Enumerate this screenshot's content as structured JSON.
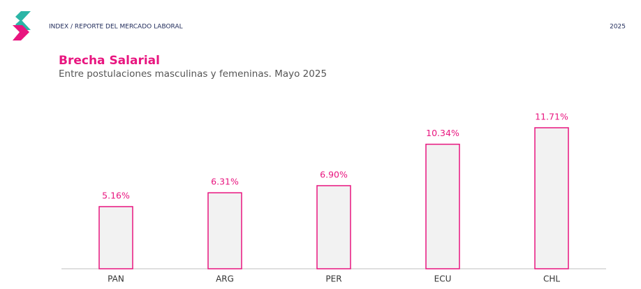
{
  "header": {
    "breadcrumb": "INDEX / REPORTE DEL MERCADO LABORAL",
    "year": "2025"
  },
  "chart_data": {
    "type": "bar",
    "title": "Brecha Salarial",
    "subtitle": "Entre postulaciones masculinas y femeninas. Mayo 2025",
    "categories": [
      "PAN",
      "ARG",
      "PER",
      "ECU",
      "CHL"
    ],
    "values": [
      5.16,
      6.31,
      6.9,
      10.34,
      11.71
    ],
    "value_labels": [
      "5.16%",
      "6.31%",
      "6.90%",
      "10.34%",
      "11.71%"
    ],
    "color": "#f2f2f2",
    "edge_color": "#e8157f"
  }
}
